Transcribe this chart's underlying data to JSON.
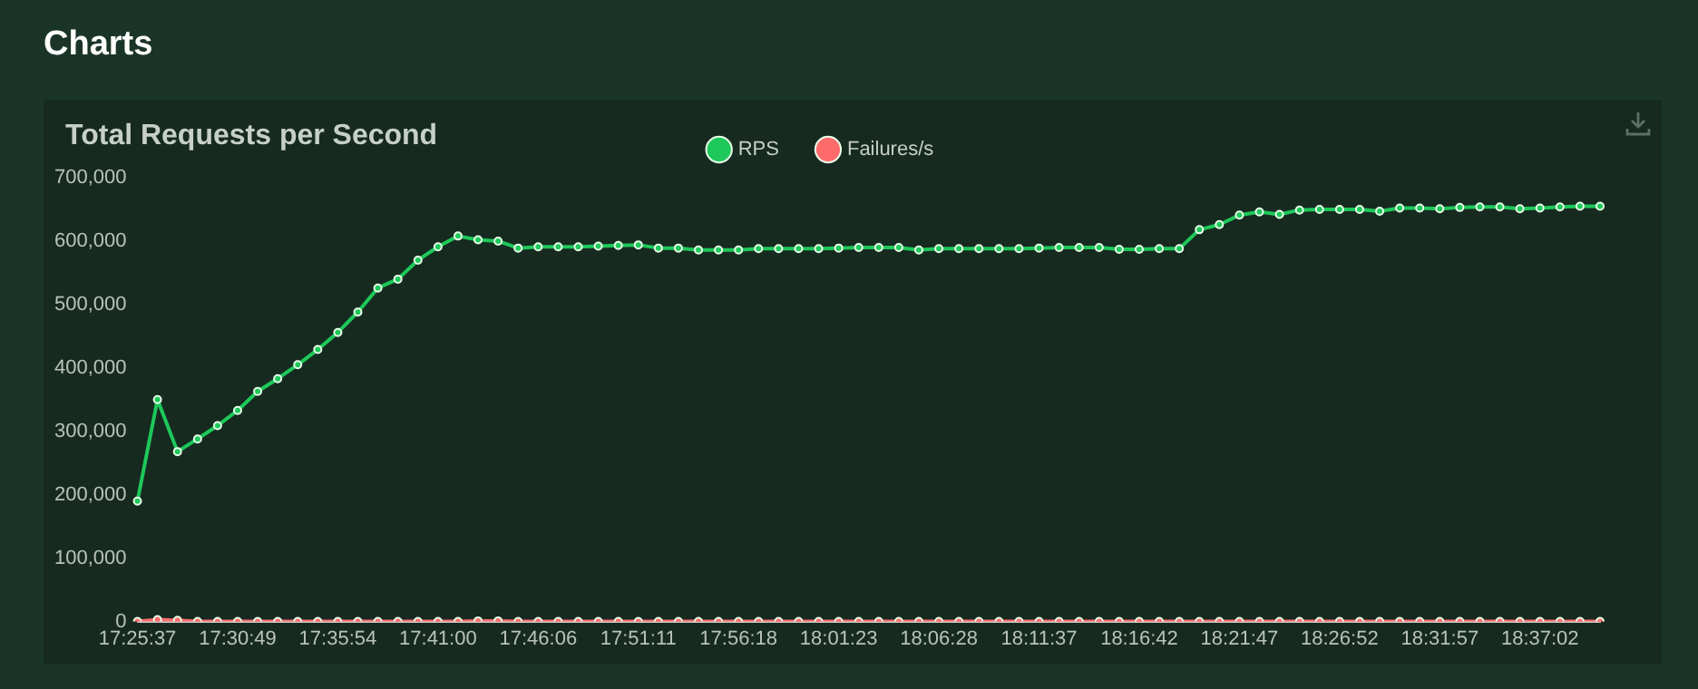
{
  "chart_data": {
    "type": "line",
    "title": "Total Requests per Second",
    "annotations": [
      "Charts"
    ],
    "categories": [
      "17:25:37",
      null,
      null,
      null,
      null,
      "17:30:49",
      null,
      null,
      null,
      null,
      "17:35:54",
      null,
      null,
      null,
      null,
      "17:41:00",
      null,
      null,
      null,
      null,
      "17:46:06",
      null,
      null,
      null,
      null,
      "17:51:11",
      null,
      null,
      null,
      null,
      "17:56:18",
      null,
      null,
      null,
      null,
      "18:01:23",
      null,
      null,
      null,
      null,
      "18:06:28",
      null,
      null,
      null,
      null,
      "18:11:37",
      null,
      null,
      null,
      null,
      "18:16:42",
      null,
      null,
      null,
      null,
      "18:21:47",
      null,
      null,
      null,
      null,
      "18:26:52",
      null,
      null,
      null,
      null,
      "18:31:57",
      null,
      null,
      null,
      null,
      "18:37:02",
      null,
      null,
      null
    ],
    "series": [
      {
        "name": "RPS",
        "color": "#1ec85a",
        "values": [
          190000,
          350000,
          268000,
          288000,
          309000,
          333000,
          363000,
          383000,
          405000,
          429000,
          456000,
          488000,
          526000,
          540000,
          570000,
          591000,
          608000,
          602000,
          600000,
          589000,
          591000,
          591000,
          591000,
          592000,
          593000,
          594000,
          589000,
          589000,
          586000,
          586000,
          586000,
          588000,
          588000,
          588000,
          588000,
          589000,
          590000,
          590000,
          590000,
          586000,
          588000,
          588000,
          588000,
          588000,
          588000,
          589000,
          590000,
          590000,
          590000,
          587000,
          587000,
          588000,
          588000,
          618000,
          626000,
          641000,
          646000,
          642000,
          649000,
          650000,
          650000,
          650000,
          647000,
          652000,
          652000,
          651000,
          653000,
          654000,
          654000,
          651000,
          652000,
          654000,
          655000,
          655000
        ]
      },
      {
        "name": "Failures/s",
        "color": "#ff6b6b",
        "values": [
          0,
          3000,
          2000,
          0,
          0,
          0,
          0,
          0,
          0,
          0,
          0,
          0,
          0,
          0,
          0,
          0,
          0,
          1000,
          1000,
          0,
          0,
          0,
          0,
          0,
          0,
          0,
          0,
          0,
          0,
          0,
          0,
          0,
          0,
          0,
          0,
          0,
          0,
          0,
          0,
          0,
          0,
          0,
          0,
          0,
          0,
          0,
          0,
          0,
          0,
          0,
          0,
          0,
          0,
          0,
          0,
          0,
          0,
          0,
          0,
          0,
          0,
          0,
          0,
          0,
          0,
          0,
          0,
          0,
          0,
          0,
          0,
          0,
          0,
          0
        ]
      }
    ],
    "ylim": [
      0,
      700000
    ],
    "yticks": [
      0,
      {
        "value": 100000,
        "label": "100,000"
      },
      {
        "value": 200000,
        "label": "200,000"
      },
      {
        "value": 300000,
        "label": "300,000"
      },
      {
        "value": 400000,
        "label": "400,000"
      },
      {
        "value": 500000,
        "label": "500,000"
      },
      {
        "value": 600000,
        "label": "600,000"
      },
      {
        "value": 700000,
        "label": "700,000"
      }
    ],
    "grid": false,
    "legend": "top",
    "marker": "circle",
    "line_style": "solid"
  }
}
